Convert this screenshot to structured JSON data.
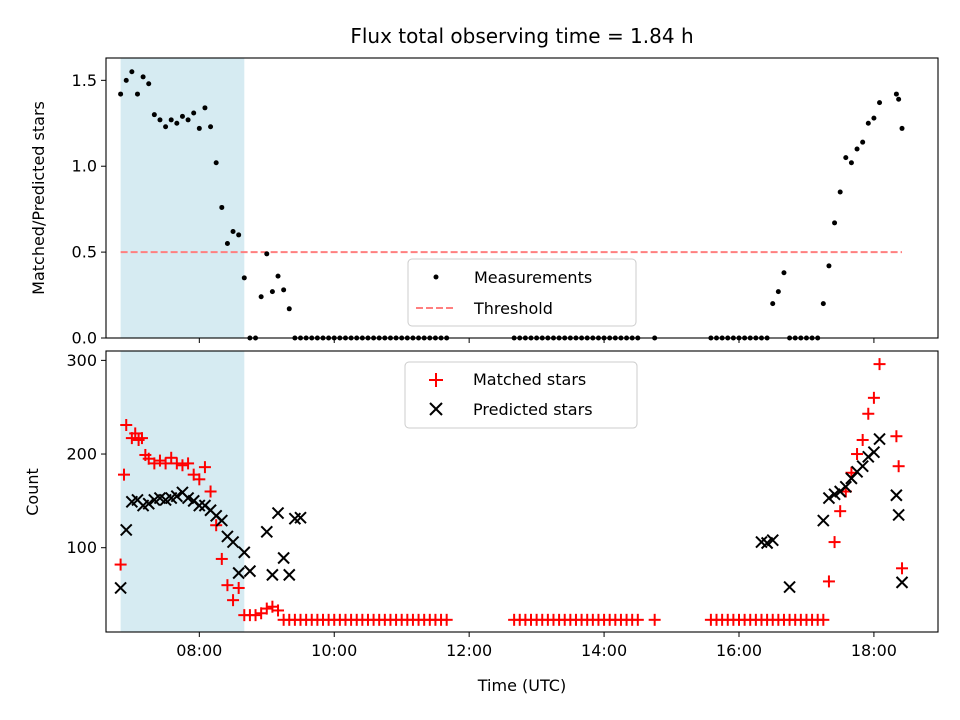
{
  "figure": {
    "title": "Flux total observing time = 1.84 h",
    "xlabel": "Time (UTC)",
    "x_ticks": [
      "08:00",
      "10:00",
      "12:00",
      "14:00",
      "16:00",
      "18:00"
    ],
    "shaded_region_color": "#add8e6"
  },
  "chart_data": [
    {
      "type": "scatter",
      "panel": "top",
      "ylabel": "Matched/Predicted stars",
      "xlim": [
        "06:37",
        "18:57"
      ],
      "ylim": [
        0,
        1.63
      ],
      "y_ticks": [
        "0.0",
        "0.5",
        "1.0",
        "1.5"
      ],
      "y_tick_values": [
        0,
        0.5,
        1.0,
        1.5
      ],
      "shaded_x_range": [
        "06:50",
        "08:40"
      ],
      "legend_placement": "lower center",
      "threshold": {
        "name": "Threshold",
        "value": 0.5,
        "x_range": [
          "06:50",
          "18:25"
        ],
        "color": "#ff7f7f",
        "style": "dashed"
      },
      "series": [
        {
          "name": "Measurements",
          "color": "#000000",
          "marker": "dot",
          "x": [
            "06:50",
            "06:55",
            "07:00",
            "07:05",
            "07:10",
            "07:15",
            "07:20",
            "07:25",
            "07:30",
            "07:35",
            "07:40",
            "07:45",
            "07:50",
            "07:55",
            "08:00",
            "08:05",
            "08:10",
            "08:15",
            "08:20",
            "08:25",
            "08:30",
            "08:35",
            "08:40",
            "08:45",
            "08:50",
            "08:55",
            "09:00",
            "09:05",
            "09:10",
            "09:15",
            "09:20",
            "09:25",
            "09:30",
            "09:35",
            "09:40",
            "09:45",
            "09:50",
            "09:55",
            "10:00",
            "10:05",
            "10:10",
            "10:15",
            "10:20",
            "10:25",
            "10:30",
            "10:35",
            "10:40",
            "10:45",
            "10:50",
            "10:55",
            "11:00",
            "11:05",
            "11:10",
            "11:15",
            "11:20",
            "11:25",
            "11:30",
            "11:35",
            "11:40",
            "12:40",
            "12:45",
            "12:50",
            "12:55",
            "13:00",
            "13:05",
            "13:10",
            "13:15",
            "13:20",
            "13:25",
            "13:30",
            "13:35",
            "13:40",
            "13:45",
            "13:50",
            "13:55",
            "14:00",
            "14:05",
            "14:10",
            "14:15",
            "14:20",
            "14:25",
            "14:30",
            "14:45",
            "15:35",
            "15:40",
            "15:45",
            "15:50",
            "15:55",
            "16:00",
            "16:05",
            "16:10",
            "16:15",
            "16:20",
            "16:25",
            "16:30",
            "16:35",
            "16:40",
            "16:45",
            "16:50",
            "16:55",
            "17:00",
            "17:05",
            "17:10",
            "17:15",
            "17:20",
            "17:25",
            "17:30",
            "17:35",
            "17:40",
            "17:45",
            "17:50",
            "17:55",
            "18:00",
            "18:05",
            "18:20",
            "18:22",
            "18:25"
          ],
          "y": [
            1.42,
            1.5,
            1.55,
            1.42,
            1.52,
            1.48,
            1.3,
            1.27,
            1.23,
            1.27,
            1.25,
            1.29,
            1.27,
            1.31,
            1.22,
            1.34,
            1.23,
            1.02,
            0.76,
            0.55,
            0.62,
            0.6,
            0.35,
            0.0,
            0.0,
            0.24,
            0.49,
            0.27,
            0.36,
            0.28,
            0.17,
            0.0,
            0.0,
            0.0,
            0.0,
            0.0,
            0.0,
            0.0,
            0.0,
            0.0,
            0.0,
            0.0,
            0.0,
            0.0,
            0.0,
            0.0,
            0.0,
            0.0,
            0.0,
            0.0,
            0.0,
            0.0,
            0.0,
            0.0,
            0.0,
            0.0,
            0.0,
            0.0,
            0.0,
            0.0,
            0.0,
            0.0,
            0.0,
            0.0,
            0.0,
            0.0,
            0.0,
            0.0,
            0.0,
            0.0,
            0.0,
            0.0,
            0.0,
            0.0,
            0.0,
            0.0,
            0.0,
            0.0,
            0.0,
            0.0,
            0.0,
            0.0,
            0.0,
            0.0,
            0.0,
            0.0,
            0.0,
            0.0,
            0.0,
            0.0,
            0.0,
            0.0,
            0.0,
            0.0,
            0.2,
            0.27,
            0.38,
            0.0,
            0.0,
            0.0,
            0.0,
            0.0,
            0.0,
            0.2,
            0.42,
            0.67,
            0.85,
            1.05,
            1.02,
            1.1,
            1.14,
            1.25,
            1.28,
            1.37,
            1.42,
            1.39,
            1.22
          ]
        }
      ]
    },
    {
      "type": "scatter",
      "panel": "bottom",
      "ylabel": "Count",
      "xlabel": "Time (UTC)",
      "xlim": [
        "06:37",
        "18:57"
      ],
      "ylim": [
        10,
        310
      ],
      "y_ticks": [
        "100",
        "200",
        "300"
      ],
      "y_tick_values": [
        100,
        200,
        300
      ],
      "shaded_x_range": [
        "06:50",
        "08:40"
      ],
      "legend_placement": "upper center",
      "series": [
        {
          "name": "Matched stars",
          "color": "#ff0000",
          "marker": "plus",
          "x": [
            "06:50",
            "06:53",
            "06:55",
            "07:00",
            "07:03",
            "07:06",
            "07:09",
            "07:12",
            "07:15",
            "07:20",
            "07:25",
            "07:30",
            "07:35",
            "07:40",
            "07:45",
            "07:50",
            "07:55",
            "08:00",
            "08:05",
            "08:10",
            "08:15",
            "08:20",
            "08:25",
            "08:30",
            "08:35",
            "08:40",
            "08:45",
            "08:50",
            "08:55",
            "09:00",
            "09:05",
            "09:10",
            "09:15",
            "09:20",
            "09:25",
            "09:30",
            "09:35",
            "09:40",
            "09:45",
            "09:50",
            "09:55",
            "10:00",
            "10:05",
            "10:10",
            "10:15",
            "10:20",
            "10:25",
            "10:30",
            "10:35",
            "10:40",
            "10:45",
            "10:50",
            "10:55",
            "11:00",
            "11:05",
            "11:10",
            "11:15",
            "11:20",
            "11:25",
            "11:30",
            "11:35",
            "11:40",
            "12:40",
            "12:45",
            "12:50",
            "12:55",
            "13:00",
            "13:05",
            "13:10",
            "13:15",
            "13:20",
            "13:25",
            "13:30",
            "13:35",
            "13:40",
            "13:45",
            "13:50",
            "13:55",
            "14:00",
            "14:05",
            "14:10",
            "14:15",
            "14:20",
            "14:25",
            "14:30",
            "14:45",
            "15:35",
            "15:40",
            "15:45",
            "15:50",
            "15:55",
            "16:00",
            "16:05",
            "16:10",
            "16:15",
            "16:20",
            "16:25",
            "16:30",
            "16:35",
            "16:40",
            "16:45",
            "16:50",
            "16:55",
            "17:00",
            "17:05",
            "17:10",
            "17:15",
            "17:20",
            "17:25",
            "17:30",
            "17:35",
            "17:40",
            "17:45",
            "17:50",
            "17:55",
            "18:00",
            "18:05",
            "18:20",
            "18:22",
            "18:25"
          ],
          "y": [
            82,
            178,
            231,
            217,
            222,
            215,
            217,
            199,
            195,
            190,
            193,
            190,
            196,
            190,
            188,
            190,
            178,
            173,
            186,
            160,
            124,
            88,
            60,
            44,
            57,
            28,
            28,
            28,
            30,
            35,
            37,
            33,
            23,
            23,
            23,
            23,
            23,
            23,
            23,
            23,
            23,
            23,
            23,
            23,
            23,
            23,
            23,
            23,
            23,
            23,
            23,
            23,
            23,
            23,
            23,
            23,
            23,
            23,
            23,
            23,
            23,
            23,
            23,
            23,
            23,
            23,
            23,
            23,
            23,
            23,
            23,
            23,
            23,
            23,
            23,
            23,
            23,
            23,
            23,
            23,
            23,
            23,
            23,
            23,
            23,
            23,
            23,
            23,
            23,
            23,
            23,
            23,
            23,
            23,
            23,
            23,
            23,
            23,
            23,
            23,
            23,
            23,
            23,
            23,
            23,
            23,
            23,
            64,
            106,
            139,
            160,
            180,
            200,
            215,
            243,
            260,
            296,
            219,
            187,
            78
          ]
        },
        {
          "name": "Predicted stars",
          "color": "#000000",
          "marker": "x",
          "x": [
            "06:50",
            "06:55",
            "07:00",
            "07:05",
            "07:10",
            "07:15",
            "07:20",
            "07:25",
            "07:30",
            "07:35",
            "07:40",
            "07:45",
            "07:50",
            "07:55",
            "08:00",
            "08:05",
            "08:10",
            "08:15",
            "08:20",
            "08:25",
            "08:30",
            "08:35",
            "08:40",
            "08:45",
            "09:00",
            "09:05",
            "09:10",
            "09:15",
            "09:20",
            "09:25",
            "09:30",
            "16:20",
            "16:25",
            "16:30",
            "16:45",
            "17:15",
            "17:20",
            "17:25",
            "17:30",
            "17:35",
            "17:40",
            "17:45",
            "17:50",
            "17:55",
            "18:00",
            "18:05",
            "18:20",
            "18:22",
            "18:25"
          ],
          "y": [
            57,
            119,
            149,
            151,
            145,
            147,
            151,
            153,
            151,
            153,
            155,
            159,
            153,
            150,
            145,
            145,
            140,
            134,
            129,
            112,
            106,
            73,
            95,
            75,
            117,
            71,
            137,
            89,
            71,
            131,
            132,
            106,
            105,
            108,
            58,
            129,
            153,
            157,
            160,
            165,
            174,
            181,
            187,
            197,
            202,
            216,
            156,
            135,
            63
          ]
        }
      ]
    }
  ]
}
